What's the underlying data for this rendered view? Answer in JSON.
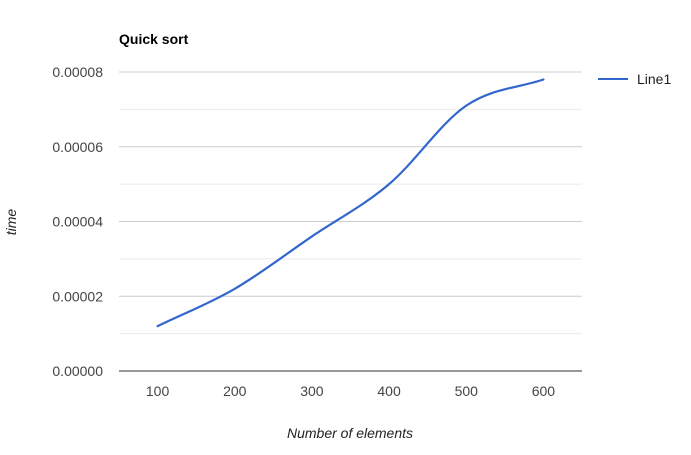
{
  "chart_data": {
    "type": "line",
    "title": "Quick sort",
    "xlabel": "Number of elements",
    "ylabel": "time",
    "x": [
      100,
      200,
      300,
      400,
      500,
      600
    ],
    "x_ticks": [
      "100",
      "200",
      "300",
      "400",
      "500",
      "600"
    ],
    "xlim": [
      50,
      650
    ],
    "ylim": [
      0,
      8e-05
    ],
    "y_ticks": [
      "0.00000",
      "0.00002",
      "0.00004",
      "0.00006",
      "0.00008"
    ],
    "y_tick_values": [
      0,
      2e-05,
      4e-05,
      6e-05,
      8e-05
    ],
    "grid": true,
    "legend": {
      "placement": "right"
    },
    "series": [
      {
        "name": "Line1",
        "color": "#3366cc",
        "values": [
          1.2e-05,
          2.2e-05,
          3.6e-05,
          5e-05,
          7.1e-05,
          7.8e-05
        ]
      }
    ]
  }
}
